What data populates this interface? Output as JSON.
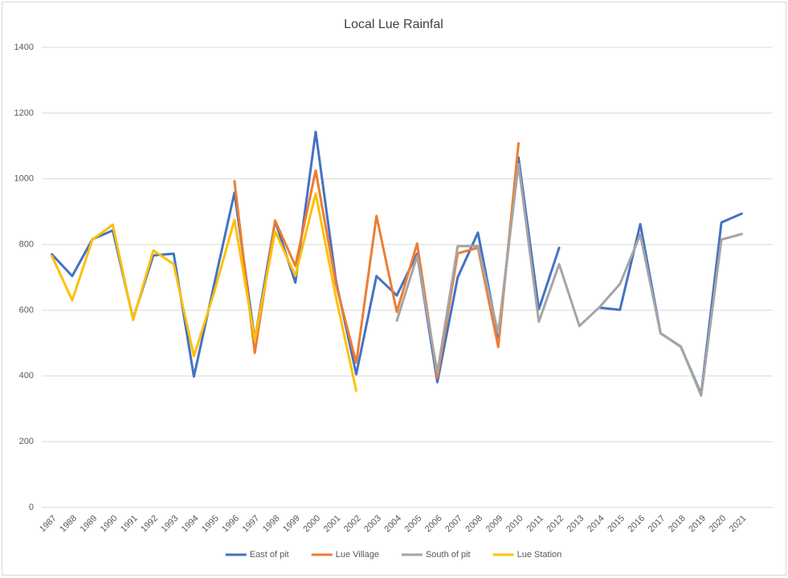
{
  "chart_data": {
    "type": "line",
    "title": "Local Lue Rainfal",
    "categories": [
      "1987",
      "1988",
      "1989",
      "1990",
      "1991",
      "1992",
      "1993",
      "1994",
      "1995",
      "1996",
      "1997",
      "1998",
      "1999",
      "2000",
      "2001",
      "2002",
      "2003",
      "2004",
      "2005",
      "2006",
      "2007",
      "2008",
      "2009",
      "2010",
      "2011",
      "2012",
      "2013",
      "2014",
      "2015",
      "2016",
      "2017",
      "2018",
      "2019",
      "2020",
      "2021"
    ],
    "series": [
      {
        "name": "East of pit",
        "color": "#4472c4",
        "values": [
          770,
          704,
          816,
          843,
          574,
          767,
          772,
          398,
          680,
          958,
          510,
          872,
          684,
          1143,
          690,
          405,
          704,
          645,
          772,
          381,
          700,
          836,
          518,
          1065,
          603,
          790,
          null,
          608,
          601,
          862,
          530,
          489,
          345,
          867,
          894
        ]
      },
      {
        "name": "Lue Village",
        "color": "#ed7d31",
        "values": [
          null,
          null,
          null,
          null,
          null,
          null,
          null,
          null,
          null,
          993,
          470,
          873,
          735,
          1025,
          680,
          440,
          887,
          595,
          803,
          395,
          773,
          790,
          488,
          1108,
          null,
          null,
          null,
          null,
          null,
          null,
          null,
          null,
          null,
          null,
          null
        ]
      },
      {
        "name": "South of pit",
        "color": "#a5a5a5",
        "values": [
          null,
          null,
          null,
          null,
          null,
          null,
          null,
          null,
          null,
          null,
          null,
          null,
          null,
          null,
          null,
          null,
          null,
          568,
          765,
          410,
          795,
          795,
          530,
          1045,
          565,
          740,
          552,
          610,
          680,
          830,
          530,
          490,
          340,
          815,
          832
        ]
      },
      {
        "name": "Lue Station",
        "color": "#ffc000",
        "values": [
          765,
          630,
          815,
          860,
          570,
          782,
          740,
          460,
          655,
          875,
          510,
          840,
          705,
          955,
          640,
          355,
          null,
          null,
          null,
          null,
          null,
          null,
          null,
          null,
          null,
          null,
          null,
          null,
          null,
          null,
          null,
          null,
          null,
          null,
          null
        ]
      }
    ],
    "ylim": [
      0,
      1400
    ],
    "yticks": [
      0,
      200,
      400,
      600,
      800,
      1000,
      1200,
      1400
    ],
    "grid": true,
    "legend": "bottom"
  }
}
